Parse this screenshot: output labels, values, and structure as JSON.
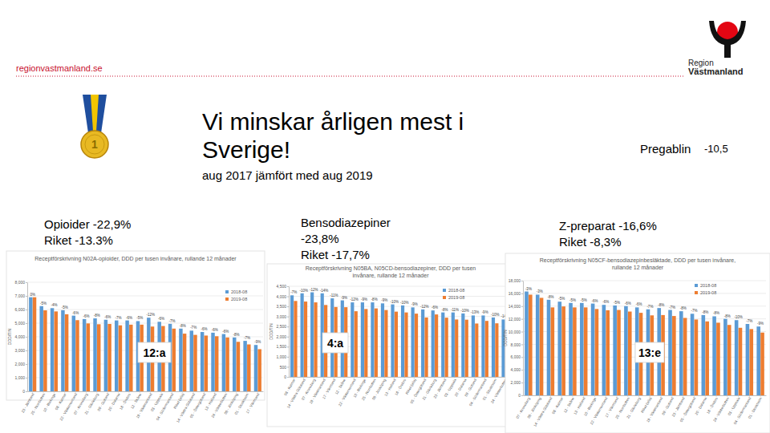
{
  "slide": {
    "site": "regionvastmanland.se",
    "logo": [
      "Region",
      "Västmanland"
    ],
    "medal": "1",
    "title": [
      "Vi minskar årligen mest i",
      "Sverige!"
    ],
    "subtitle": "aug 2017 jämfört med aug 2019",
    "side_note": [
      "Pregablin",
      "-10,5"
    ]
  },
  "chart_data": [
    {
      "type": "bar",
      "title": "Receptförskrivning N02A-opioider, DDD per tusen invånare, rullande 12 månader",
      "caption": [
        "Opioider -22,9%",
        "Riket -13.3%"
      ],
      "rank_label": "12:a",
      "y_label": "DDD/TIN",
      "categories": [
        "23 - Jämtland",
        "25 - Norrbotten",
        "10 - Blekinge",
        "08 - Kalmar",
        "22 - Västernorrland",
        "07 - Kronoberg",
        "21 - Gävleborg",
        "09 - Gotland",
        "20 - Dalarna",
        "18 - Örebro",
        "12 - Skåne",
        "19 - Västmanland",
        "03 - Uppsala",
        "04 - Södermanland",
        "Riket (alla)",
        "14 - Västra Götaland",
        "05 - Östergötland",
        "13 - Halland",
        "24 - Västerbotten",
        "06 - Jönköping",
        "01 - Stockholm",
        "17 - Värmland"
      ],
      "series": [
        {
          "name": "2018-08",
          "color": "#5b9bd5",
          "values": [
            6900,
            6250,
            6100,
            5950,
            5550,
            5300,
            5350,
            5250,
            5200,
            5200,
            5150,
            5400,
            5100,
            4950,
            4600,
            4450,
            4350,
            4300,
            4200,
            3950,
            3700,
            3400
          ]
        },
        {
          "name": "2019-08",
          "color": "#ed7d31",
          "values": [
            6900,
            5940,
            5860,
            5650,
            5220,
            4980,
            4920,
            4940,
            4840,
            4890,
            4890,
            4750,
            4790,
            4600,
            4230,
            4140,
            4090,
            4040,
            3950,
            3630,
            3440,
            3090
          ]
        }
      ],
      "change_labels": [
        "0%",
        "-5%",
        "-4%",
        "-5%",
        "-6%",
        "-6%",
        "-8%",
        "-6%",
        "-7%",
        "-6%",
        "-5%",
        "-12%",
        "-6%",
        "-7%",
        "-8%",
        "-7%",
        "-6%",
        "-6%",
        "-6%",
        "-8%",
        "-7%",
        "-9%"
      ],
      "ylim": [
        0,
        8000
      ],
      "yticks": [
        0,
        {
          "value": 1000,
          "label": "1,000"
        },
        {
          "value": 2000,
          "label": "2,000"
        },
        {
          "value": 3000,
          "label": "3,000"
        },
        {
          "value": 4000,
          "label": "4,000"
        },
        {
          "value": 5000,
          "label": "5,000"
        },
        {
          "value": 6000,
          "label": "6,000"
        },
        {
          "value": 7000,
          "label": "7,000"
        },
        {
          "value": 8000,
          "label": "8,000"
        }
      ],
      "grid": true,
      "legend": "upper right"
    },
    {
      "type": "bar",
      "title": "Receptförskrivning N05BA, N05CD-bensodiazepiner, DDD per tusen invånare, rullande 12 månader",
      "caption": [
        "Bensodiazepiner",
        "-23,8%",
        "Riket -17,7%"
      ],
      "rank_label": "4:a",
      "y_label": "DDD/TIN",
      "categories": [
        "08 - Kalmar",
        "14 - Västra Götaland",
        "07 - Kronoberg",
        "19 - Västmanland",
        "17 - Värmland",
        "12 - Skåne",
        "22 - Västernorrland",
        "10 - Blekinge",
        "25 - Norrbotten",
        "06 - Jönköping",
        "13 - Halland",
        "18 - Örebro",
        "Riket (alla)",
        "05 - Östergötland",
        "21 - Gävleborg",
        "23 - Jämtland",
        "03 - Uppsala",
        "20 - Dalarna",
        "09 - Gotland",
        "04 - Södermanland",
        "01 - Stockholm",
        "24 - Västerbotten"
      ],
      "series": [
        {
          "name": "2018-08",
          "color": "#5b9bd5",
          "values": [
            4050,
            4150,
            4200,
            4150,
            3900,
            3800,
            3700,
            3700,
            3700,
            3650,
            3600,
            3550,
            3450,
            3350,
            3300,
            3200,
            3200,
            3150,
            3050,
            3050,
            2950,
            2850
          ]
        },
        {
          "name": "2019-08",
          "color": "#ed7d31",
          "values": [
            3770,
            3740,
            3700,
            3570,
            3470,
            3460,
            3260,
            3370,
            3400,
            3320,
            3240,
            3200,
            3140,
            2950,
            3100,
            2940,
            2850,
            2840,
            2650,
            2780,
            2660,
            2450
          ]
        }
      ],
      "change_labels": [
        "-7%",
        "-10%",
        "-12%",
        "-14%",
        "-11%",
        "-9%",
        "-12%",
        "-9%",
        "-8%",
        "-9%",
        "-10%",
        "-10%",
        "-9%",
        "-12%",
        "-6%",
        "-8%",
        "-11%",
        "-10%",
        "-13%",
        "-9%",
        "-10%",
        "-14%"
      ],
      "ylim": [
        0,
        4500
      ],
      "yticks": [
        0,
        500,
        {
          "value": 1000,
          "label": "1,000"
        },
        {
          "value": 1500,
          "label": "1,500"
        },
        {
          "value": 2000,
          "label": "2,000"
        },
        {
          "value": 2500,
          "label": "2,500"
        },
        {
          "value": 3000,
          "label": "3,000"
        },
        {
          "value": 3500,
          "label": "3,500"
        },
        {
          "value": 4000,
          "label": "4,000"
        },
        {
          "value": 4500,
          "label": "4,500"
        }
      ],
      "grid": true,
      "legend": "upper right"
    },
    {
      "type": "bar",
      "title": "Receptförskrivning N05CF-bensodiazepinbesläktade, DDD per tusen invånare, rullande 12 månader",
      "caption": [
        "Z-preparat -16,6%",
        "Riket -8,3%"
      ],
      "rank_label": "13:e",
      "y_label": "DDD/TIN",
      "categories": [
        "07 - Kronoberg",
        "06 - Jönköping",
        "14 - Västra Götaland",
        "08 - Kalmar",
        "12 - Skåne",
        "13 - Halland",
        "10 - Blekinge",
        "22 - Västernorrland",
        "17 - Värmland",
        "25 - Norrbotten",
        "21 - Gävleborg",
        "Riket (alla)",
        "19 - Västmanland",
        "09 - Gotland",
        "23 - Jämtland",
        "05 - Östergötland",
        "20 - Dalarna",
        "18 - Örebro",
        "24 - Västerbotten",
        "03 - Uppsala",
        "04 - Södermanland",
        "01 - Stockholm"
      ],
      "series": [
        {
          "name": "2018-08",
          "color": "#5b9bd5",
          "values": [
            16300,
            15800,
            15000,
            14700,
            14500,
            14500,
            14400,
            14200,
            14100,
            14000,
            13800,
            13500,
            13700,
            13400,
            13200,
            12800,
            12600,
            12400,
            12000,
            11800,
            11200,
            10800
          ]
        },
        {
          "name": "2019-08",
          "color": "#ed7d31",
          "values": [
            15800,
            15300,
            13800,
            13950,
            13800,
            13800,
            13550,
            13350,
            13400,
            13150,
            12950,
            12550,
            12600,
            12450,
            12150,
            11900,
            11600,
            11400,
            11050,
            10600,
            10400,
            9850
          ]
        }
      ],
      "change_labels": [
        "-3%",
        "-3%",
        "-8%",
        "-5%",
        "-5%",
        "-5%",
        "-6%",
        "-6%",
        "-5%",
        "-6%",
        "-6%",
        "-7%",
        "-8%",
        "-7%",
        "-8%",
        "-7%",
        "-8%",
        "-8%",
        "-8%",
        "-10%",
        "-7%",
        "-9%"
      ],
      "ylim": [
        0,
        18000
      ],
      "yticks": [
        0,
        {
          "value": 2000,
          "label": "2,000"
        },
        {
          "value": 4000,
          "label": "4,000"
        },
        {
          "value": 6000,
          "label": "6,000"
        },
        {
          "value": 8000,
          "label": "8,000"
        },
        {
          "value": 10000,
          "label": "10,000"
        },
        {
          "value": 12000,
          "label": "12,000"
        },
        {
          "value": 14000,
          "label": "14,000"
        },
        {
          "value": 16000,
          "label": "16,000"
        },
        {
          "value": 18000,
          "label": "18,000"
        }
      ],
      "grid": true,
      "legend": "upper right"
    }
  ]
}
